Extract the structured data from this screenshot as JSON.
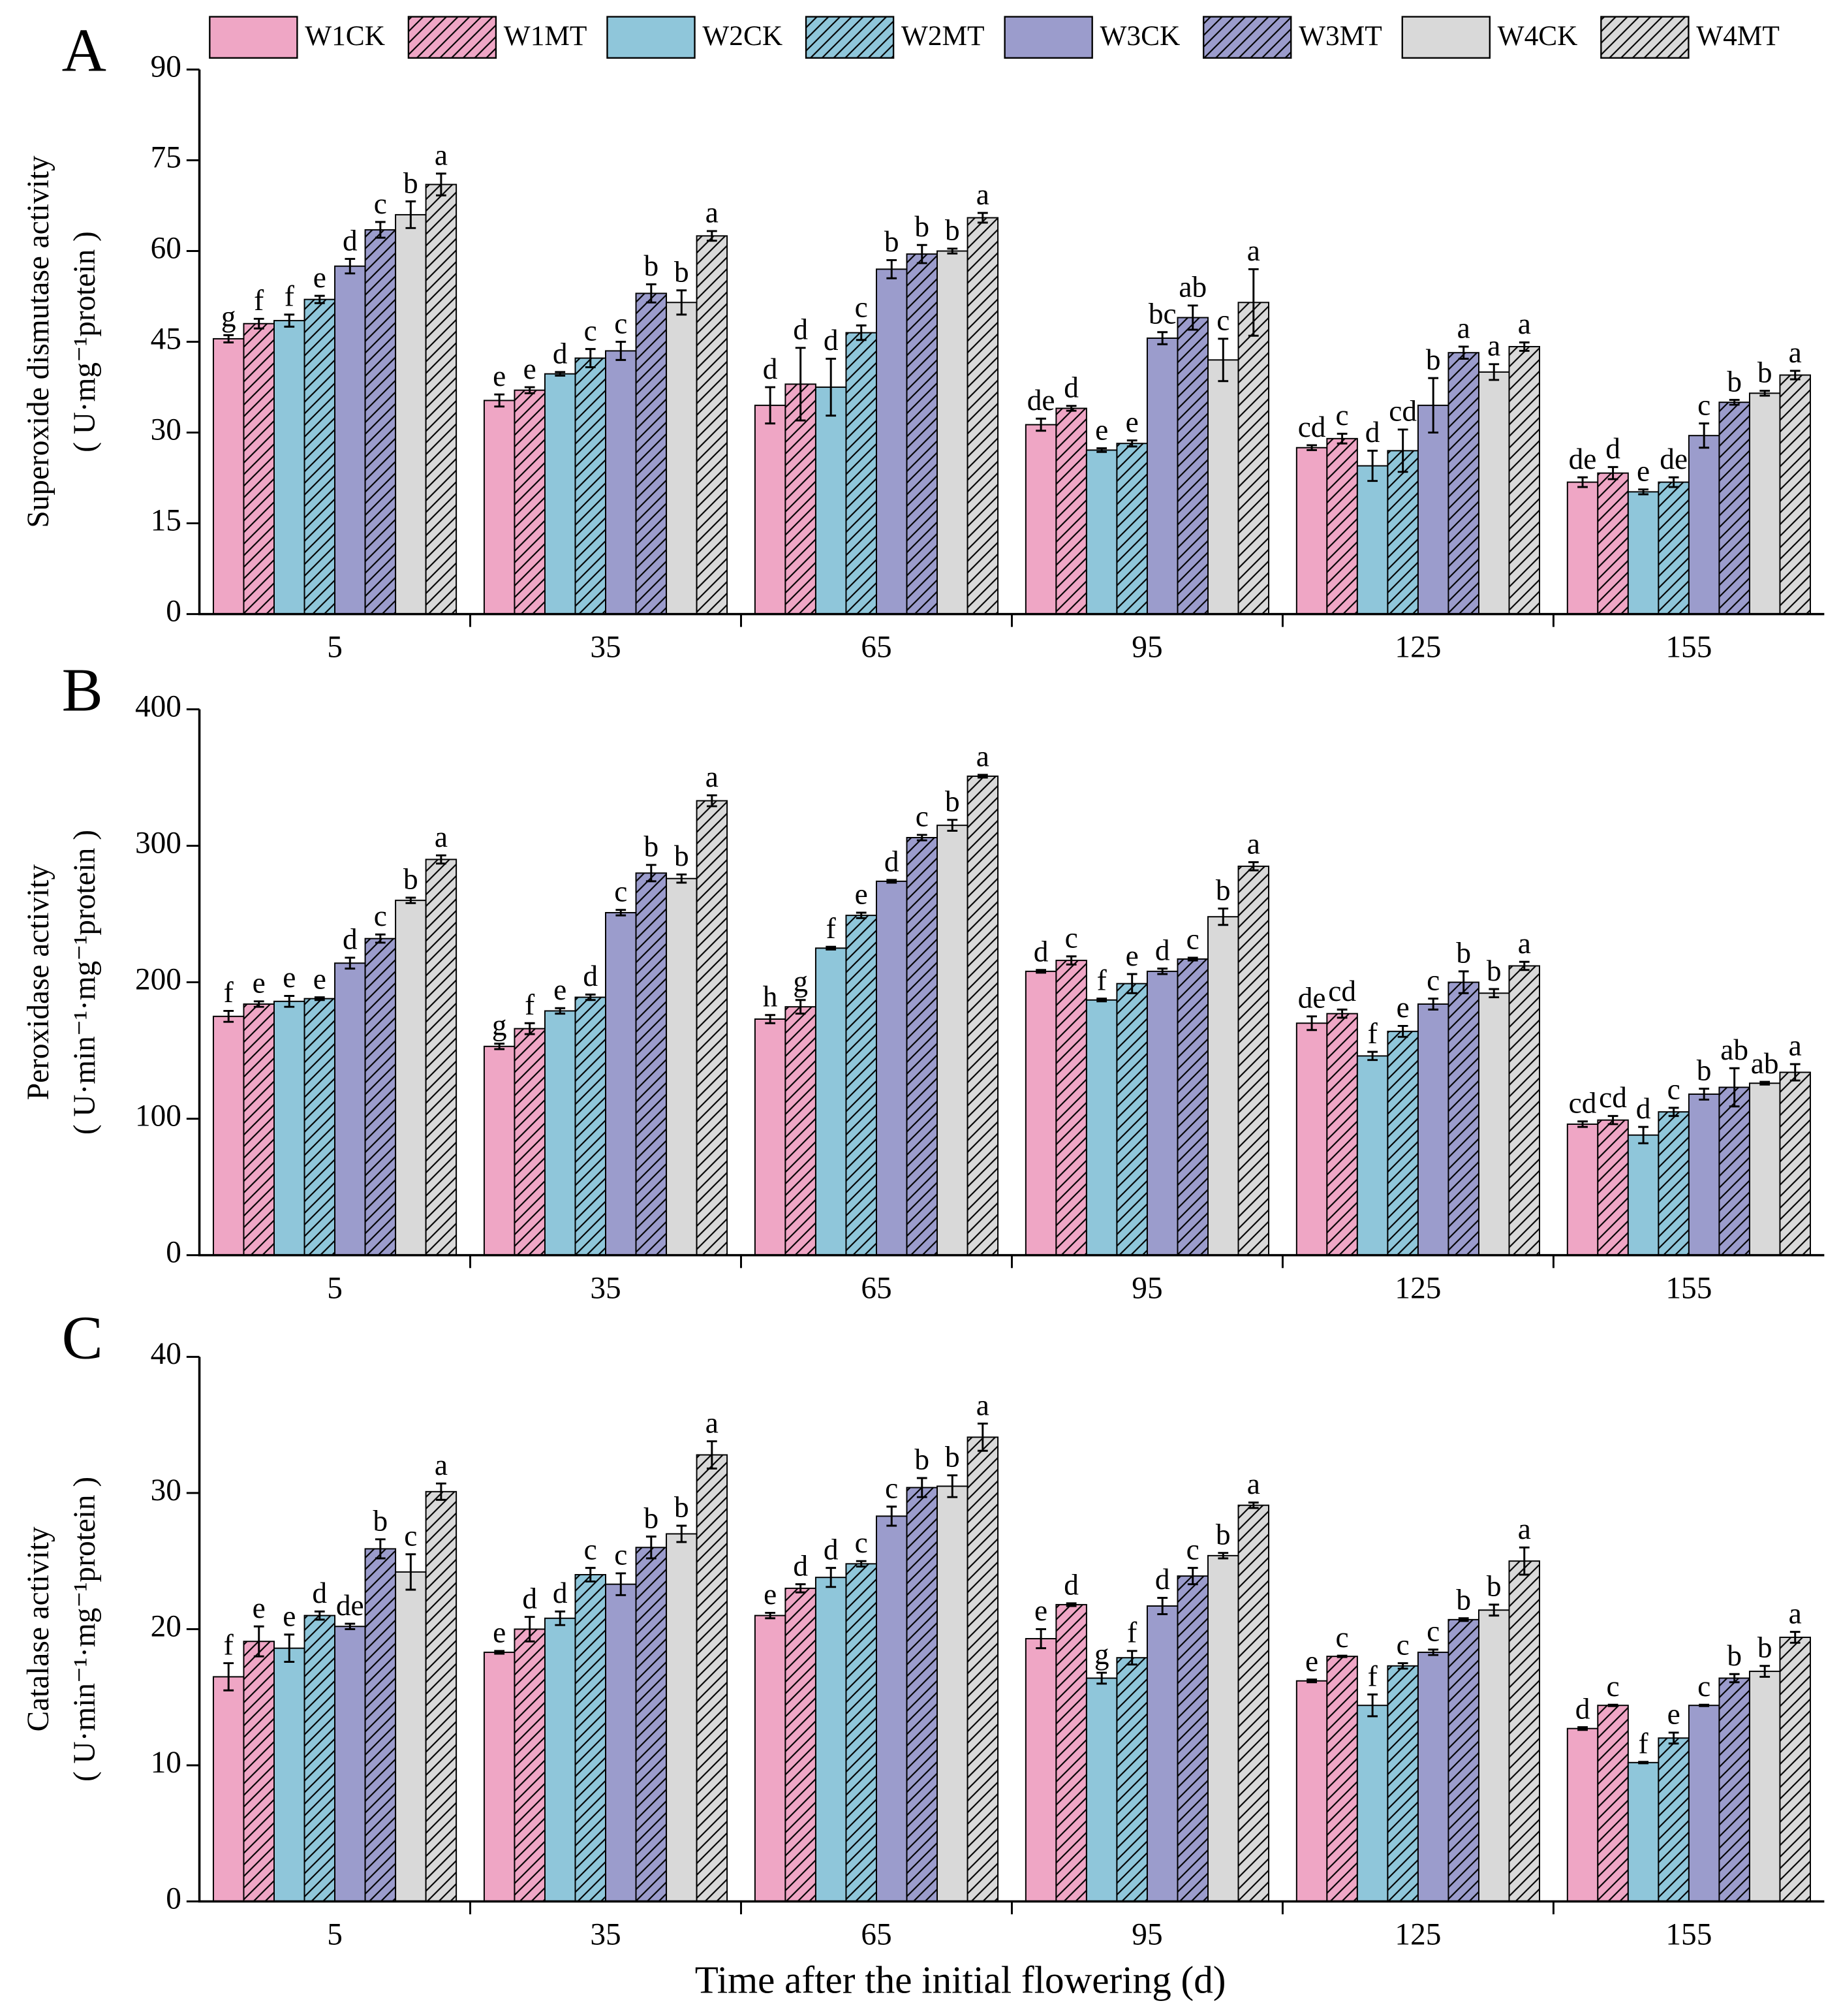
{
  "chart_data": [
    {
      "type": "bar",
      "panel_label": "A",
      "y_label": [
        "Superoxide dismutase activity",
        "( U·mg⁻¹protein )"
      ],
      "categories": [
        "5",
        "35",
        "65",
        "95",
        "125",
        "155"
      ],
      "ylim": [
        0,
        90
      ],
      "yticks": [
        0,
        15,
        30,
        45,
        60,
        75,
        90
      ],
      "series": [
        {
          "name": "W1CK",
          "color": "#efa6c5",
          "hatch": false,
          "values": [
            45.5,
            35.3,
            34.5,
            31.3,
            27.5,
            21.8
          ],
          "errors": [
            0.6,
            1,
            3,
            1,
            0.4,
            0.8
          ],
          "letters": [
            "g",
            "e",
            "d",
            "de",
            "cd",
            "de"
          ]
        },
        {
          "name": "W1MT",
          "color": "#efa6c5",
          "hatch": true,
          "values": [
            48,
            37,
            38,
            34,
            29,
            23.3
          ],
          "errors": [
            0.8,
            0.5,
            6,
            0.4,
            0.8,
            1
          ],
          "letters": [
            "f",
            "e",
            "d",
            "d",
            "c",
            "d"
          ]
        },
        {
          "name": "W2CK",
          "color": "#8fc6da",
          "hatch": false,
          "values": [
            48.5,
            39.7,
            37.5,
            27.1,
            24.5,
            20.2
          ],
          "errors": [
            1,
            0.3,
            4.7,
            0.3,
            2.5,
            0.4
          ],
          "letters": [
            "f",
            "d",
            "d",
            "e",
            "d",
            "e"
          ]
        },
        {
          "name": "W2MT",
          "color": "#8fc6da",
          "hatch": true,
          "values": [
            52,
            42.3,
            46.5,
            28.2,
            27,
            21.8
          ],
          "errors": [
            0.6,
            1.5,
            1.2,
            0.5,
            3.5,
            0.8
          ],
          "letters": [
            "e",
            "c",
            "c",
            "e",
            "cd",
            "de"
          ]
        },
        {
          "name": "W3CK",
          "color": "#9b9ccc",
          "hatch": false,
          "values": [
            57.5,
            43.5,
            57,
            45.6,
            34.5,
            29.5
          ],
          "errors": [
            1.2,
            1.5,
            1.5,
            1,
            4.5,
            2
          ],
          "letters": [
            "d",
            "c",
            "b",
            "bc",
            "b",
            "c"
          ]
        },
        {
          "name": "W3MT",
          "color": "#9b9ccc",
          "hatch": true,
          "values": [
            63.5,
            53,
            59.5,
            49,
            43.2,
            35
          ],
          "errors": [
            1.3,
            1.5,
            1.5,
            2,
            1,
            0.4
          ],
          "letters": [
            "c",
            "b",
            "b",
            "ab",
            "a",
            "b"
          ]
        },
        {
          "name": "W4CK",
          "color": "#d9d9d9",
          "hatch": false,
          "values": [
            66,
            51.5,
            60,
            42,
            40,
            36.5
          ],
          "errors": [
            2.2,
            2,
            0.4,
            3.5,
            1.3,
            0.4
          ],
          "letters": [
            "b",
            "b",
            "b",
            "c",
            "a",
            "b"
          ]
        },
        {
          "name": "W4MT",
          "color": "#d9d9d9",
          "hatch": true,
          "values": [
            71,
            62.5,
            65.5,
            51.5,
            44.2,
            39.5
          ],
          "errors": [
            1.8,
            0.8,
            0.8,
            5.5,
            0.7,
            0.7
          ],
          "letters": [
            "a",
            "a",
            "a",
            "a",
            "a",
            "a"
          ]
        }
      ]
    },
    {
      "type": "bar",
      "panel_label": "B",
      "y_label": [
        "Peroxidase activity",
        "( U·min⁻¹·mg⁻¹protein )"
      ],
      "categories": [
        "5",
        "35",
        "65",
        "95",
        "125",
        "155"
      ],
      "ylim": [
        0,
        400
      ],
      "yticks": [
        0,
        100,
        200,
        300,
        400
      ],
      "series": [
        {
          "values": [
            175,
            153,
            173,
            208,
            170,
            96
          ],
          "errors": [
            4,
            2,
            3,
            1,
            5,
            2
          ],
          "letters": [
            "f",
            "g",
            "h",
            "d",
            "de",
            "cd"
          ]
        },
        {
          "values": [
            184,
            166,
            182,
            216,
            177,
            99
          ],
          "errors": [
            2,
            4,
            5,
            3,
            3,
            3
          ],
          "letters": [
            "e",
            "f",
            "g",
            "c",
            "cd",
            "cd"
          ]
        },
        {
          "values": [
            186,
            179,
            225,
            187,
            146,
            88
          ],
          "errors": [
            4,
            2,
            1,
            1,
            3,
            6
          ],
          "letters": [
            "e",
            "e",
            "f",
            "f",
            "f",
            "d"
          ]
        },
        {
          "values": [
            188,
            189,
            249,
            199,
            164,
            105
          ],
          "errors": [
            1,
            2,
            2,
            7,
            4,
            3
          ],
          "letters": [
            "e",
            "d",
            "e",
            "e",
            "e",
            "c"
          ]
        },
        {
          "values": [
            214,
            251,
            274,
            208,
            184,
            118
          ],
          "errors": [
            4,
            2,
            1,
            2,
            4,
            4
          ],
          "letters": [
            "d",
            "c",
            "d",
            "d",
            "c",
            "b"
          ]
        },
        {
          "values": [
            232,
            280,
            306,
            217,
            200,
            123
          ],
          "errors": [
            3,
            6,
            2,
            1,
            8,
            14
          ],
          "letters": [
            "c",
            "b",
            "c",
            "c",
            "b",
            "ab"
          ]
        },
        {
          "values": [
            260,
            276,
            315,
            248,
            192,
            126
          ],
          "errors": [
            2,
            3,
            4,
            6,
            3,
            1
          ],
          "letters": [
            "b",
            "b",
            "b",
            "b",
            "b",
            "ab"
          ]
        },
        {
          "values": [
            290,
            333,
            351,
            285,
            212,
            134
          ],
          "errors": [
            3,
            4,
            1,
            3,
            3,
            6
          ],
          "letters": [
            "a",
            "a",
            "a",
            "a",
            "a",
            "a"
          ]
        }
      ]
    },
    {
      "type": "bar",
      "panel_label": "C",
      "y_label": [
        "Catalase activity",
        "( U·min⁻¹·mg⁻¹protein )"
      ],
      "x_label": "Time after the initial flowering (d)",
      "categories": [
        "5",
        "35",
        "65",
        "95",
        "125",
        "155"
      ],
      "ylim": [
        0,
        40
      ],
      "yticks": [
        0,
        10,
        20,
        30,
        40
      ],
      "series": [
        {
          "values": [
            16.5,
            18.3,
            21,
            19.3,
            16.2,
            12.7
          ],
          "errors": [
            1,
            0.1,
            0.2,
            0.7,
            0.1,
            0.1
          ],
          "letters": [
            "f",
            "e",
            "e",
            "e",
            "e",
            "d"
          ]
        },
        {
          "values": [
            19.1,
            20,
            23,
            21.8,
            18,
            14.4
          ],
          "errors": [
            1.1,
            0.9,
            0.3,
            0.1,
            0.05,
            0.05
          ],
          "letters": [
            "e",
            "d",
            "d",
            "d",
            "c",
            "c"
          ]
        },
        {
          "values": [
            18.6,
            20.8,
            23.8,
            16.4,
            14.4,
            10.2
          ],
          "errors": [
            1,
            0.5,
            0.7,
            0.4,
            0.8,
            0.05
          ],
          "letters": [
            "e",
            "d",
            "d",
            "g",
            "f",
            "f"
          ]
        },
        {
          "values": [
            21,
            24,
            24.8,
            17.9,
            17.3,
            12
          ],
          "errors": [
            0.3,
            0.5,
            0.2,
            0.5,
            0.2,
            0.4
          ],
          "letters": [
            "d",
            "c",
            "c",
            "f",
            "c",
            "e"
          ]
        },
        {
          "values": [
            20.2,
            23.3,
            28.3,
            21.7,
            18.3,
            14.4
          ],
          "errors": [
            0.2,
            0.8,
            0.7,
            0.6,
            0.2,
            0.05
          ],
          "letters": [
            "de",
            "c",
            "c",
            "d",
            "c",
            "c"
          ]
        },
        {
          "values": [
            25.9,
            26,
            30.4,
            23.9,
            20.7,
            16.4
          ],
          "errors": [
            0.7,
            0.8,
            0.7,
            0.6,
            0.1,
            0.3
          ],
          "letters": [
            "b",
            "b",
            "b",
            "c",
            "b",
            "b"
          ]
        },
        {
          "values": [
            24.2,
            27,
            30.5,
            25.4,
            21.4,
            16.9
          ],
          "errors": [
            1.3,
            0.6,
            0.8,
            0.2,
            0.4,
            0.4
          ],
          "letters": [
            "c",
            "b",
            "b",
            "b",
            "b",
            "b"
          ]
        },
        {
          "values": [
            30.1,
            32.8,
            34.1,
            29.1,
            25,
            19.4
          ],
          "errors": [
            0.6,
            1,
            1,
            0.2,
            1,
            0.4
          ],
          "letters": [
            "a",
            "a",
            "a",
            "a",
            "a",
            "a"
          ]
        }
      ]
    }
  ]
}
